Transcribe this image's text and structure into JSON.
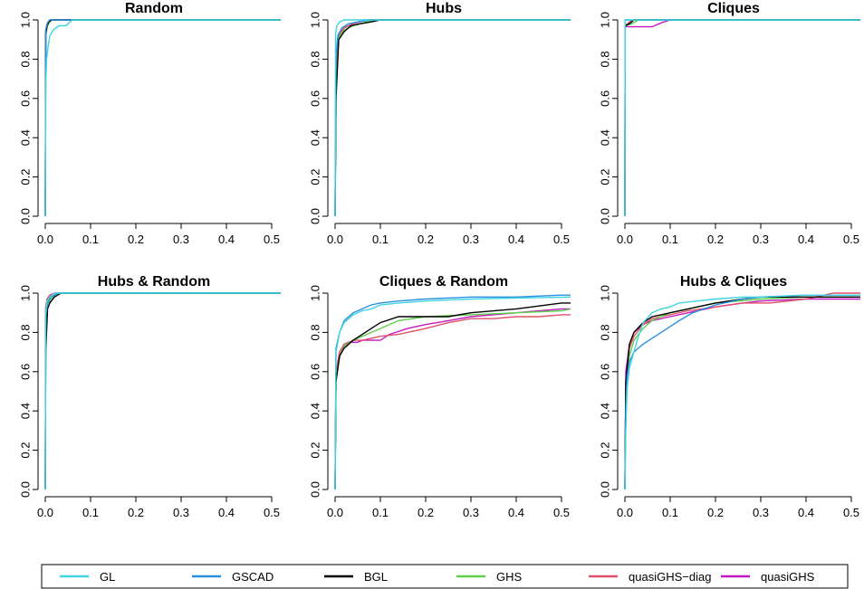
{
  "colors": {
    "GL": "#3fd4e0",
    "GSCAD": "#2a8fe0",
    "BGL": "#000000",
    "GHS": "#5ecf4a",
    "quasiGHS-diag": "#e0506a",
    "quasiGHS": "#c21ac2"
  },
  "legend": [
    "GL",
    "GSCAD",
    "BGL",
    "GHS",
    "quasiGHS−diag",
    "quasiGHS"
  ],
  "chart_data": [
    {
      "type": "line",
      "title": "Random",
      "xlim": [
        0,
        0.52
      ],
      "ylim": [
        0,
        1
      ],
      "xticks": [
        "0.0",
        "0.1",
        "0.2",
        "0.3",
        "0.4",
        "0.5"
      ],
      "yticks": [
        "0.0",
        "0.2",
        "0.4",
        "0.6",
        "0.8",
        "1.0"
      ],
      "series": [
        {
          "name": "GL",
          "x": [
            0,
            0.001,
            0.003,
            0.006,
            0.01,
            0.018,
            0.03,
            0.045,
            0.06,
            0.52
          ],
          "y": [
            0,
            0.68,
            0.8,
            0.86,
            0.92,
            0.95,
            0.97,
            0.97,
            1.0,
            1.0
          ]
        },
        {
          "name": "GSCAD",
          "x": [
            0,
            0.001,
            0.003,
            0.006,
            0.01,
            0.52
          ],
          "y": [
            0,
            0.95,
            0.97,
            0.99,
            1.0,
            1.0
          ]
        },
        {
          "name": "BGL",
          "x": [
            0,
            0.001,
            0.004,
            0.008,
            0.015,
            0.52
          ],
          "y": [
            0,
            0.93,
            0.97,
            0.99,
            1.0,
            1.0
          ]
        },
        {
          "name": "GHS",
          "x": [
            0,
            0.001,
            0.005,
            0.012,
            0.52
          ],
          "y": [
            0,
            0.92,
            0.97,
            1.0,
            1.0
          ]
        },
        {
          "name": "quasiGHS-diag",
          "x": [
            0,
            0.001,
            0.004,
            0.01,
            0.52
          ],
          "y": [
            0,
            0.94,
            0.98,
            1.0,
            1.0
          ]
        },
        {
          "name": "quasiGHS",
          "x": [
            0,
            0.001,
            0.004,
            0.01,
            0.52
          ],
          "y": [
            0,
            0.95,
            0.98,
            1.0,
            1.0
          ]
        }
      ]
    },
    {
      "type": "line",
      "title": "Hubs",
      "xlim": [
        0,
        0.52
      ],
      "ylim": [
        0,
        1
      ],
      "xticks": [
        "0.0",
        "0.1",
        "0.2",
        "0.3",
        "0.4",
        "0.5"
      ],
      "yticks": [
        "0.0",
        "0.2",
        "0.4",
        "0.6",
        "0.8",
        "1.0"
      ],
      "series": [
        {
          "name": "GL",
          "x": [
            0,
            0.001,
            0.004,
            0.01,
            0.02,
            0.52
          ],
          "y": [
            0,
            0.93,
            0.97,
            0.99,
            1.0,
            1.0
          ]
        },
        {
          "name": "GSCAD",
          "x": [
            0,
            0.002,
            0.006,
            0.015,
            0.03,
            0.05,
            0.08,
            0.52
          ],
          "y": [
            0,
            0.82,
            0.92,
            0.96,
            0.98,
            0.99,
            1.0,
            1.0
          ]
        },
        {
          "name": "BGL",
          "x": [
            0,
            0.002,
            0.008,
            0.02,
            0.035,
            0.055,
            0.08,
            0.1,
            0.52
          ],
          "y": [
            0,
            0.6,
            0.9,
            0.94,
            0.97,
            0.98,
            0.99,
            1.0,
            1.0
          ]
        },
        {
          "name": "GHS",
          "x": [
            0,
            0.002,
            0.008,
            0.02,
            0.04,
            0.07,
            0.1,
            0.52
          ],
          "y": [
            0,
            0.62,
            0.91,
            0.95,
            0.97,
            0.99,
            1.0,
            1.0
          ]
        },
        {
          "name": "quasiGHS-diag",
          "x": [
            0,
            0.002,
            0.008,
            0.02,
            0.04,
            0.07,
            0.52
          ],
          "y": [
            0,
            0.7,
            0.92,
            0.96,
            0.98,
            1.0,
            1.0
          ]
        },
        {
          "name": "quasiGHS",
          "x": [
            0,
            0.002,
            0.008,
            0.02,
            0.04,
            0.07,
            0.52
          ],
          "y": [
            0,
            0.72,
            0.93,
            0.96,
            0.98,
            1.0,
            1.0
          ]
        }
      ]
    },
    {
      "type": "line",
      "title": "Cliques",
      "xlim": [
        0,
        0.52
      ],
      "ylim": [
        0,
        1
      ],
      "xticks": [
        "0.0",
        "0.1",
        "0.2",
        "0.3",
        "0.4",
        "0.5"
      ],
      "yticks": [
        "0.0",
        "0.2",
        "0.4",
        "0.6",
        "0.8",
        "1.0"
      ],
      "series": [
        {
          "name": "GL",
          "x": [
            0,
            0.0005,
            0.52
          ],
          "y": [
            0,
            1.0,
            1.0
          ]
        },
        {
          "name": "GSCAD",
          "x": [
            0,
            0.0005,
            0.52
          ],
          "y": [
            0,
            1.0,
            1.0
          ]
        },
        {
          "name": "BGL",
          "x": [
            0,
            0.0005,
            0.01,
            0.02,
            0.52
          ],
          "y": [
            0,
            0.97,
            0.98,
            1.0,
            1.0
          ]
        },
        {
          "name": "GHS",
          "x": [
            0,
            0.0005,
            0.015,
            0.03,
            0.52
          ],
          "y": [
            0,
            0.97,
            0.98,
            1.0,
            1.0
          ]
        },
        {
          "name": "quasiGHS-diag",
          "x": [
            0,
            0.0005,
            0.01,
            0.02,
            0.52
          ],
          "y": [
            0,
            0.97,
            0.99,
            1.0,
            1.0
          ]
        },
        {
          "name": "quasiGHS",
          "x": [
            0,
            0.0005,
            0.06,
            0.08,
            0.1,
            0.52
          ],
          "y": [
            0,
            0.965,
            0.965,
            0.985,
            1.0,
            1.0
          ]
        }
      ]
    },
    {
      "type": "line",
      "title": "Hubs & Random",
      "xlim": [
        0,
        0.52
      ],
      "ylim": [
        0,
        1
      ],
      "xticks": [
        "0.0",
        "0.1",
        "0.2",
        "0.3",
        "0.4",
        "0.5"
      ],
      "yticks": [
        "0.0",
        "0.2",
        "0.4",
        "0.6",
        "0.8",
        "1.0"
      ],
      "series": [
        {
          "name": "GL",
          "x": [
            0,
            0.001,
            0.004,
            0.01,
            0.02,
            0.52
          ],
          "y": [
            0,
            0.9,
            0.96,
            0.98,
            1.0,
            1.0
          ]
        },
        {
          "name": "GSCAD",
          "x": [
            0,
            0.001,
            0.005,
            0.012,
            0.02,
            0.03,
            0.52
          ],
          "y": [
            0,
            0.88,
            0.95,
            0.98,
            0.99,
            1.0,
            1.0
          ]
        },
        {
          "name": "BGL",
          "x": [
            0,
            0.001,
            0.005,
            0.01,
            0.02,
            0.035,
            0.52
          ],
          "y": [
            0,
            0.7,
            0.92,
            0.95,
            0.98,
            1.0,
            1.0
          ]
        },
        {
          "name": "GHS",
          "x": [
            0,
            0.001,
            0.005,
            0.012,
            0.025,
            0.52
          ],
          "y": [
            0,
            0.8,
            0.94,
            0.97,
            1.0,
            1.0
          ]
        },
        {
          "name": "quasiGHS-diag",
          "x": [
            0,
            0.001,
            0.004,
            0.01,
            0.02,
            0.52
          ],
          "y": [
            0,
            0.93,
            0.97,
            0.99,
            1.0,
            1.0
          ]
        },
        {
          "name": "quasiGHS",
          "x": [
            0,
            0.001,
            0.004,
            0.01,
            0.02,
            0.52
          ],
          "y": [
            0,
            0.92,
            0.97,
            0.99,
            1.0,
            1.0
          ]
        }
      ]
    },
    {
      "type": "line",
      "title": "Cliques & Random",
      "xlim": [
        0,
        0.52
      ],
      "ylim": [
        0,
        1
      ],
      "xticks": [
        "0.0",
        "0.1",
        "0.2",
        "0.3",
        "0.4",
        "0.5"
      ],
      "yticks": [
        "0.0",
        "0.2",
        "0.4",
        "0.6",
        "0.8",
        "1.0"
      ],
      "series": [
        {
          "name": "GL",
          "x": [
            0,
            0.002,
            0.01,
            0.02,
            0.04,
            0.06,
            0.08,
            0.1,
            0.14,
            0.2,
            0.3,
            0.4,
            0.52
          ],
          "y": [
            0,
            0.7,
            0.8,
            0.85,
            0.89,
            0.91,
            0.92,
            0.94,
            0.95,
            0.96,
            0.97,
            0.975,
            0.98
          ]
        },
        {
          "name": "GSCAD",
          "x": [
            0,
            0.002,
            0.01,
            0.02,
            0.04,
            0.06,
            0.08,
            0.1,
            0.14,
            0.2,
            0.3,
            0.4,
            0.5,
            0.52
          ],
          "y": [
            0,
            0.72,
            0.8,
            0.86,
            0.9,
            0.92,
            0.94,
            0.95,
            0.96,
            0.97,
            0.98,
            0.98,
            0.99,
            0.99
          ]
        },
        {
          "name": "BGL",
          "x": [
            0,
            0.002,
            0.01,
            0.02,
            0.04,
            0.06,
            0.08,
            0.1,
            0.14,
            0.2,
            0.25,
            0.3,
            0.4,
            0.5,
            0.52
          ],
          "y": [
            0,
            0.55,
            0.68,
            0.72,
            0.76,
            0.79,
            0.82,
            0.85,
            0.88,
            0.88,
            0.88,
            0.9,
            0.92,
            0.95,
            0.95
          ]
        },
        {
          "name": "GHS",
          "x": [
            0,
            0.002,
            0.01,
            0.02,
            0.04,
            0.06,
            0.08,
            0.1,
            0.14,
            0.2,
            0.3,
            0.4,
            0.5,
            0.52
          ],
          "y": [
            0,
            0.55,
            0.68,
            0.73,
            0.76,
            0.78,
            0.8,
            0.82,
            0.86,
            0.88,
            0.89,
            0.9,
            0.91,
            0.92
          ]
        },
        {
          "name": "quasiGHS-diag",
          "x": [
            0,
            0.002,
            0.01,
            0.02,
            0.04,
            0.06,
            0.08,
            0.1,
            0.14,
            0.2,
            0.25,
            0.3,
            0.35,
            0.4,
            0.45,
            0.5,
            0.52
          ],
          "y": [
            0,
            0.6,
            0.7,
            0.74,
            0.76,
            0.76,
            0.77,
            0.78,
            0.79,
            0.82,
            0.85,
            0.87,
            0.87,
            0.88,
            0.88,
            0.89,
            0.89
          ]
        },
        {
          "name": "quasiGHS",
          "x": [
            0,
            0.002,
            0.01,
            0.02,
            0.03,
            0.05,
            0.06,
            0.08,
            0.1,
            0.12,
            0.16,
            0.2,
            0.25,
            0.3,
            0.4,
            0.5,
            0.52
          ],
          "y": [
            0,
            0.6,
            0.7,
            0.74,
            0.75,
            0.75,
            0.76,
            0.76,
            0.76,
            0.79,
            0.82,
            0.84,
            0.86,
            0.88,
            0.9,
            0.92,
            0.92
          ]
        }
      ]
    },
    {
      "type": "line",
      "title": "Hubs & Cliques",
      "xlim": [
        0,
        0.52
      ],
      "ylim": [
        0,
        1
      ],
      "xticks": [
        "0.0",
        "0.1",
        "0.2",
        "0.3",
        "0.4",
        "0.5"
      ],
      "yticks": [
        "0.0",
        "0.2",
        "0.4",
        "0.6",
        "0.8",
        "1.0"
      ],
      "series": [
        {
          "name": "GL",
          "x": [
            0,
            0.002,
            0.005,
            0.01,
            0.02,
            0.03,
            0.04,
            0.06,
            0.08,
            0.1,
            0.12,
            0.16,
            0.2,
            0.26,
            0.3,
            0.4,
            0.52
          ],
          "y": [
            0,
            0.3,
            0.52,
            0.62,
            0.7,
            0.78,
            0.85,
            0.9,
            0.92,
            0.93,
            0.95,
            0.96,
            0.97,
            0.98,
            0.98,
            0.99,
            0.99
          ]
        },
        {
          "name": "GSCAD",
          "x": [
            0,
            0.002,
            0.005,
            0.01,
            0.02,
            0.04,
            0.06,
            0.08,
            0.1,
            0.12,
            0.15,
            0.2,
            0.26,
            0.3,
            0.4,
            0.52
          ],
          "y": [
            0,
            0.4,
            0.58,
            0.65,
            0.7,
            0.74,
            0.77,
            0.8,
            0.83,
            0.86,
            0.9,
            0.94,
            0.97,
            0.98,
            0.99,
            0.99
          ]
        },
        {
          "name": "BGL",
          "x": [
            0,
            0.002,
            0.01,
            0.02,
            0.04,
            0.06,
            0.08,
            0.1,
            0.14,
            0.2,
            0.26,
            0.3,
            0.4,
            0.52
          ],
          "y": [
            0,
            0.55,
            0.74,
            0.8,
            0.85,
            0.88,
            0.89,
            0.9,
            0.92,
            0.95,
            0.97,
            0.98,
            0.98,
            0.98
          ]
        },
        {
          "name": "GHS",
          "x": [
            0,
            0.002,
            0.01,
            0.02,
            0.04,
            0.06,
            0.08,
            0.1,
            0.14,
            0.2,
            0.3,
            0.4,
            0.52
          ],
          "y": [
            0,
            0.5,
            0.68,
            0.76,
            0.82,
            0.86,
            0.88,
            0.9,
            0.92,
            0.95,
            0.97,
            0.98,
            0.98
          ]
        },
        {
          "name": "quasiGHS-diag",
          "x": [
            0,
            0.002,
            0.01,
            0.02,
            0.04,
            0.06,
            0.08,
            0.1,
            0.14,
            0.2,
            0.26,
            0.32,
            0.4,
            0.46,
            0.5,
            0.52
          ],
          "y": [
            0,
            0.55,
            0.72,
            0.78,
            0.84,
            0.87,
            0.88,
            0.89,
            0.91,
            0.93,
            0.95,
            0.95,
            0.97,
            1.0,
            1.0,
            1.0
          ]
        },
        {
          "name": "quasiGHS",
          "x": [
            0,
            0.002,
            0.01,
            0.02,
            0.04,
            0.06,
            0.08,
            0.1,
            0.14,
            0.2,
            0.26,
            0.3,
            0.4,
            0.5,
            0.52
          ],
          "y": [
            0,
            0.6,
            0.74,
            0.8,
            0.84,
            0.86,
            0.87,
            0.88,
            0.9,
            0.93,
            0.95,
            0.96,
            0.97,
            0.97,
            0.97
          ]
        }
      ]
    }
  ]
}
